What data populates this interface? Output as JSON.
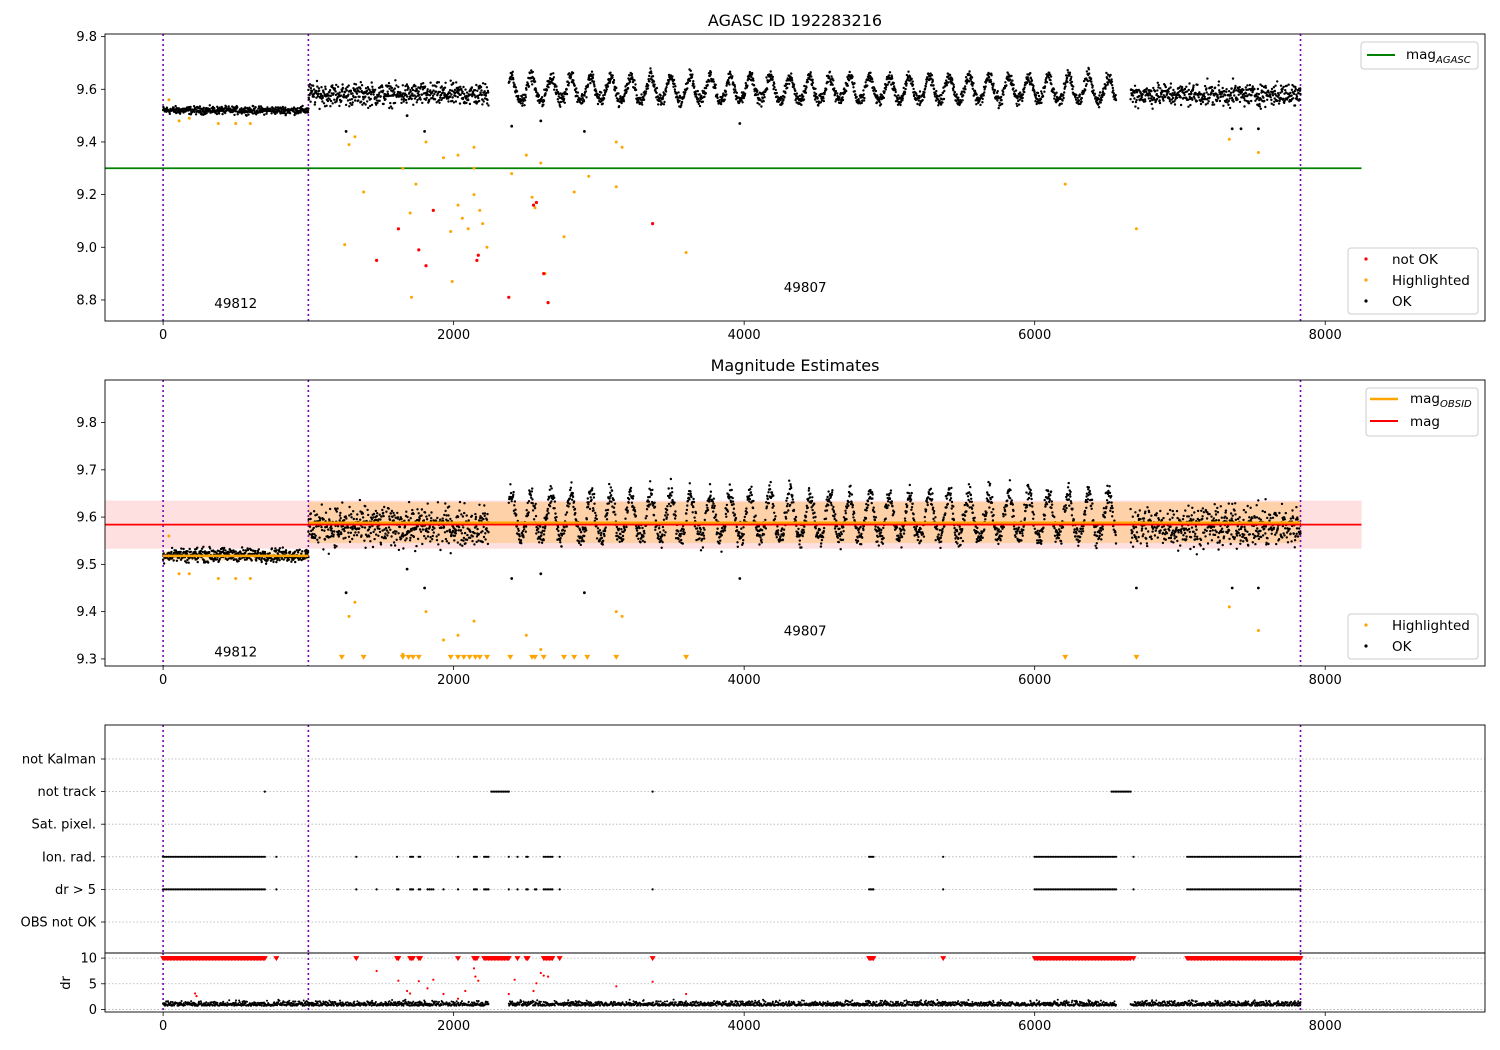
{
  "chart_data": [
    {
      "type": "scatter",
      "title": "AGASC ID 192283216",
      "xlim": [
        -400,
        9100
      ],
      "ylim": [
        8.72,
        9.81
      ],
      "xticks": [
        0,
        2000,
        4000,
        6000,
        8000
      ],
      "yticks": [
        8.8,
        9.0,
        9.2,
        9.4,
        9.6,
        9.8
      ],
      "obsid_boundaries": [
        0,
        1000,
        7830
      ],
      "obsid_labels": [
        {
          "text": "49812",
          "x": 500,
          "y": 8.77
        },
        {
          "text": "49807",
          "x": 4420,
          "y": 8.83
        }
      ],
      "mag_agasc": {
        "value": 9.3,
        "x_range": [
          -400,
          8250
        ]
      },
      "legend_top": [
        {
          "label": "mag",
          "subscript": "AGASC",
          "color": "#008000"
        }
      ],
      "legend_bottom": [
        {
          "label": "not OK",
          "color": "#ff0000"
        },
        {
          "label": "Highlighted",
          "color": "#ffa500"
        },
        {
          "label": "OK",
          "color": "#000000"
        }
      ],
      "series": [
        {
          "name": "OK",
          "segments": [
            {
              "x_range": [
                0,
                1000
              ],
              "base": 9.52,
              "spread": 0.012
            },
            {
              "x_range": [
                1000,
                2240
              ],
              "base": 9.58,
              "spread": 0.035
            },
            {
              "x_range": [
                2380,
                6560
              ],
              "base": 9.58,
              "spread": 0.035
            },
            {
              "x_range": [
                6660,
                7830
              ],
              "base": 9.58,
              "spread": 0.035
            }
          ],
          "outliers": [
            [
              1260,
              9.44
            ],
            [
              1680,
              9.5
            ],
            [
              1800,
              9.44
            ],
            [
              2400,
              9.46
            ],
            [
              2600,
              9.48
            ],
            [
              2900,
              9.44
            ],
            [
              3970,
              9.47
            ],
            [
              7360,
              9.45
            ],
            [
              7420,
              9.45
            ],
            [
              7540,
              9.45
            ]
          ]
        },
        {
          "name": "Highlighted",
          "points": [
            [
              40,
              9.56
            ],
            [
              110,
              9.48
            ],
            [
              180,
              9.49
            ],
            [
              380,
              9.47
            ],
            [
              500,
              9.47
            ],
            [
              600,
              9.47
            ],
            [
              1250,
              9.01
            ],
            [
              1280,
              9.39
            ],
            [
              1320,
              9.42
            ],
            [
              1380,
              9.21
            ],
            [
              1650,
              9.3
            ],
            [
              1700,
              9.13
            ],
            [
              1710,
              8.81
            ],
            [
              1740,
              9.24
            ],
            [
              1810,
              9.4
            ],
            [
              1930,
              9.34
            ],
            [
              1980,
              9.06
            ],
            [
              1990,
              8.87
            ],
            [
              2030,
              9.16
            ],
            [
              2030,
              9.35
            ],
            [
              2060,
              9.11
            ],
            [
              2100,
              9.07
            ],
            [
              2140,
              9.38
            ],
            [
              2140,
              9.3
            ],
            [
              2140,
              9.2
            ],
            [
              2180,
              9.14
            ],
            [
              2200,
              9.09
            ],
            [
              2230,
              9.0
            ],
            [
              2400,
              9.28
            ],
            [
              2500,
              9.35
            ],
            [
              2540,
              9.19
            ],
            [
              2560,
              9.15
            ],
            [
              2600,
              9.32
            ],
            [
              2630,
              8.9
            ],
            [
              2760,
              9.04
            ],
            [
              2830,
              9.21
            ],
            [
              2930,
              9.27
            ],
            [
              3120,
              9.4
            ],
            [
              3120,
              9.23
            ],
            [
              3160,
              9.38
            ],
            [
              3600,
              8.98
            ],
            [
              6210,
              9.24
            ],
            [
              6700,
              9.07
            ],
            [
              7340,
              9.41
            ],
            [
              7540,
              9.36
            ]
          ]
        },
        {
          "name": "not OK",
          "points": [
            [
              1470,
              8.95
            ],
            [
              1620,
              9.07
            ],
            [
              1860,
              9.14
            ],
            [
              1760,
              8.99
            ],
            [
              1810,
              8.93
            ],
            [
              2160,
              8.95
            ],
            [
              2170,
              8.97
            ],
            [
              2380,
              8.81
            ],
            [
              2550,
              9.16
            ],
            [
              2570,
              9.17
            ],
            [
              2620,
              8.9
            ],
            [
              2650,
              8.79
            ],
            [
              3370,
              9.09
            ]
          ]
        }
      ]
    },
    {
      "type": "scatter",
      "title": "Magnitude Estimates",
      "xlim": [
        -400,
        9100
      ],
      "ylim": [
        9.285,
        9.89
      ],
      "xticks": [
        0,
        2000,
        4000,
        6000,
        8000
      ],
      "yticks": [
        9.3,
        9.4,
        9.5,
        9.6,
        9.7,
        9.8
      ],
      "obsid_boundaries": [
        0,
        1000,
        7830
      ],
      "obsid_labels": [
        {
          "text": "49812",
          "x": 500,
          "y": 9.305
        },
        {
          "text": "49807",
          "x": 4420,
          "y": 9.35
        }
      ],
      "mag": {
        "value": 9.584,
        "band": [
          9.533,
          9.635
        ],
        "x_range": [
          -400,
          8250
        ]
      },
      "mag_obsid": [
        {
          "value": 9.518,
          "band": [
            9.508,
            9.528
          ],
          "x_range": [
            0,
            1000
          ]
        },
        {
          "value": 9.588,
          "band": [
            9.545,
            9.632
          ],
          "x_range": [
            1000,
            7830
          ]
        }
      ],
      "legend_top": [
        {
          "label": "mag",
          "subscript": "OBSID",
          "color": "#ffa500"
        },
        {
          "label": "mag",
          "subscript": "",
          "color": "#ff0000"
        }
      ],
      "legend_bottom": [
        {
          "label": "Highlighted",
          "color": "#ffa500"
        },
        {
          "label": "OK",
          "color": "#000000"
        }
      ],
      "series": [
        {
          "name": "OK",
          "segments": [
            {
              "x_range": [
                0,
                1000
              ],
              "base": 9.52,
              "spread": 0.012
            },
            {
              "x_range": [
                1000,
                2240
              ],
              "base": 9.58,
              "spread": 0.035
            },
            {
              "x_range": [
                2380,
                6560
              ],
              "base": 9.58,
              "spread": 0.035
            },
            {
              "x_range": [
                6660,
                7830
              ],
              "base": 9.58,
              "spread": 0.035
            }
          ],
          "outliers": [
            [
              1260,
              9.44
            ],
            [
              1680,
              9.49
            ],
            [
              1800,
              9.45
            ],
            [
              2400,
              9.47
            ],
            [
              2600,
              9.48
            ],
            [
              2900,
              9.44
            ],
            [
              3970,
              9.47
            ],
            [
              6700,
              9.45
            ],
            [
              7360,
              9.45
            ],
            [
              7540,
              9.45
            ]
          ]
        },
        {
          "name": "Highlighted",
          "points": [
            [
              40,
              9.56
            ],
            [
              110,
              9.48
            ],
            [
              180,
              9.48
            ],
            [
              380,
              9.47
            ],
            [
              500,
              9.47
            ],
            [
              600,
              9.47
            ],
            [
              1280,
              9.39
            ],
            [
              1320,
              9.42
            ],
            [
              1650,
              9.31
            ],
            [
              1810,
              9.4
            ],
            [
              1930,
              9.34
            ],
            [
              2030,
              9.35
            ],
            [
              2140,
              9.38
            ],
            [
              2500,
              9.35
            ],
            [
              2600,
              9.32
            ],
            [
              3120,
              9.4
            ],
            [
              3160,
              9.39
            ],
            [
              7340,
              9.41
            ],
            [
              7540,
              9.36
            ]
          ]
        },
        {
          "name": "Highlighted (below range)",
          "points": [
            [
              1230,
              9.3
            ],
            [
              1380,
              9.3
            ],
            [
              1650,
              9.3
            ],
            [
              1690,
              9.3
            ],
            [
              1720,
              9.3
            ],
            [
              1760,
              9.3
            ],
            [
              1980,
              9.3
            ],
            [
              2030,
              9.3
            ],
            [
              2070,
              9.3
            ],
            [
              2110,
              9.3
            ],
            [
              2150,
              9.3
            ],
            [
              2180,
              9.3
            ],
            [
              2230,
              9.3
            ],
            [
              2390,
              9.3
            ],
            [
              2540,
              9.3
            ],
            [
              2560,
              9.3
            ],
            [
              2620,
              9.3
            ],
            [
              2760,
              9.3
            ],
            [
              2830,
              9.3
            ],
            [
              2920,
              9.3
            ],
            [
              3120,
              9.3
            ],
            [
              3600,
              9.3
            ],
            [
              6210,
              9.3
            ],
            [
              6700,
              9.3
            ]
          ]
        }
      ]
    },
    {
      "type": "scatter",
      "title": "",
      "xlim": [
        -400,
        9100
      ],
      "xticks": [
        0,
        2000,
        4000,
        6000,
        8000
      ],
      "obsid_boundaries": [
        0,
        1000,
        7830
      ],
      "flag_rows": [
        "not Kalman",
        "not track",
        "Sat. pixel.",
        "Ion. rad.",
        "dr > 5",
        "OBS not OK"
      ],
      "flags": {
        "not Kalman": [],
        "not track": [
          [
            700,
            700
          ],
          [
            2260,
            2380
          ],
          [
            3370,
            3370
          ],
          [
            6530,
            6660
          ]
        ],
        "Sat. pixel.": [],
        "Ion. rad.": [
          [
            0,
            700
          ],
          [
            780,
            780
          ],
          [
            1330,
            1330
          ],
          [
            1610,
            1610
          ],
          [
            1700,
            1720
          ],
          [
            1760,
            1770
          ],
          [
            2030,
            2030
          ],
          [
            2140,
            2160
          ],
          [
            2210,
            2240
          ],
          [
            2380,
            2380
          ],
          [
            2440,
            2440
          ],
          [
            2500,
            2510
          ],
          [
            2620,
            2680
          ],
          [
            2730,
            2730
          ],
          [
            4860,
            4890
          ],
          [
            5370,
            5370
          ],
          [
            6000,
            6560
          ],
          [
            6680,
            6680
          ],
          [
            7050,
            7830
          ]
        ],
        "dr > 5": [
          [
            0,
            700
          ],
          [
            780,
            780
          ],
          [
            1330,
            1330
          ],
          [
            1470,
            1470
          ],
          [
            1610,
            1620
          ],
          [
            1700,
            1720
          ],
          [
            1760,
            1770
          ],
          [
            1820,
            1860
          ],
          [
            1930,
            1930
          ],
          [
            2030,
            2030
          ],
          [
            2140,
            2160
          ],
          [
            2210,
            2240
          ],
          [
            2380,
            2380
          ],
          [
            2440,
            2440
          ],
          [
            2500,
            2510
          ],
          [
            2560,
            2570
          ],
          [
            2620,
            2680
          ],
          [
            2730,
            2730
          ],
          [
            3370,
            3370
          ],
          [
            4860,
            4890
          ],
          [
            5370,
            5370
          ],
          [
            6000,
            6560
          ],
          [
            6680,
            6680
          ],
          [
            7050,
            7830
          ]
        ],
        "OBS not OK": []
      },
      "dr": {
        "ylabel": "dr",
        "ylim": [
          -0.5,
          11
        ],
        "yticks": [
          0,
          5,
          10
        ],
        "baseline_ranges": [
          [
            0,
            2240
          ],
          [
            2380,
            6560
          ],
          [
            6660,
            7830
          ]
        ],
        "baseline_level": 0.7,
        "saturated_value": 10,
        "saturated_ranges": [
          [
            0,
            700
          ],
          [
            780,
            780
          ],
          [
            1330,
            1330
          ],
          [
            1610,
            1620
          ],
          [
            1700,
            1720
          ],
          [
            1760,
            1770
          ],
          [
            2030,
            2030
          ],
          [
            2140,
            2160
          ],
          [
            2210,
            2380
          ],
          [
            2440,
            2440
          ],
          [
            2500,
            2510
          ],
          [
            2620,
            2680
          ],
          [
            2730,
            2730
          ],
          [
            3370,
            3370
          ],
          [
            4860,
            4890
          ],
          [
            5370,
            5370
          ],
          [
            6000,
            6660
          ],
          [
            6680,
            6680
          ],
          [
            7050,
            7830
          ]
        ],
        "not_ok_points": [
          [
            1470,
            7.5
          ],
          [
            1620,
            5.6
          ],
          [
            1680,
            3.6
          ],
          [
            1700,
            3.1
          ],
          [
            1760,
            5.5
          ],
          [
            1820,
            4.1
          ],
          [
            1860,
            5.8
          ],
          [
            1930,
            3.0
          ],
          [
            2030,
            2.1
          ],
          [
            2080,
            3.6
          ],
          [
            2140,
            8.0
          ],
          [
            2150,
            6.4
          ],
          [
            2170,
            5.6
          ],
          [
            2380,
            3.0
          ],
          [
            2420,
            5.8
          ],
          [
            2550,
            3.6
          ],
          [
            2570,
            5.1
          ],
          [
            2600,
            7.1
          ],
          [
            2620,
            6.6
          ],
          [
            2650,
            6.4
          ],
          [
            3120,
            4.5
          ],
          [
            3370,
            5.4
          ],
          [
            3600,
            3.0
          ],
          [
            220,
            3.1
          ],
          [
            230,
            2.6
          ]
        ]
      }
    }
  ]
}
